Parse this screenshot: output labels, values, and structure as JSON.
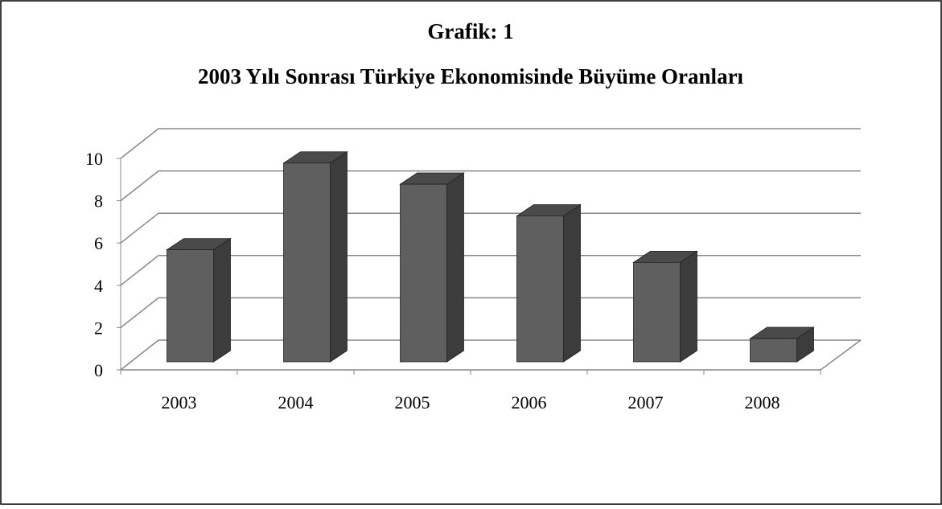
{
  "chart_data": {
    "type": "bar3d",
    "title": "Grafik: 1",
    "subtitle": "2003 Yılı Sonrası Türkiye Ekonomisinde Büyüme Oranları",
    "categories": [
      "2003",
      "2004",
      "2005",
      "2006",
      "2007",
      "2008"
    ],
    "values": [
      5.3,
      9.4,
      8.4,
      6.9,
      4.7,
      1.1
    ],
    "color": "#5f5f5f",
    "ylim": [
      0,
      10
    ],
    "yticks": [
      0,
      2,
      4,
      6,
      8,
      10
    ],
    "grid": true
  }
}
